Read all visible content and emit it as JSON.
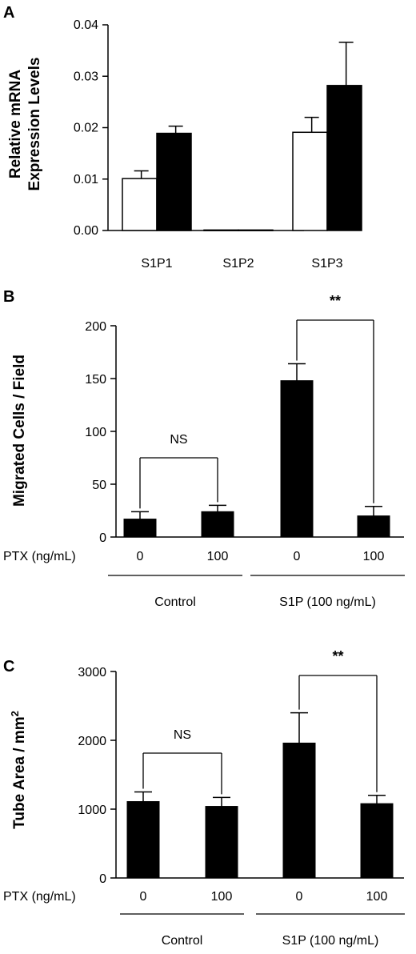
{
  "chart_data": [
    {
      "panel": "A",
      "type": "bar",
      "ylabel": [
        "Relative mRNA",
        "Expression Levels"
      ],
      "ylim": [
        0,
        0.04
      ],
      "yticks": [
        "0.00",
        "0.01",
        "0.02",
        "0.03",
        "0.04"
      ],
      "categories": [
        "S1P1",
        "S1P2",
        "S1P3"
      ],
      "series": [
        {
          "fill": "white",
          "values": [
            0.0101,
            0.0001,
            0.0191
          ],
          "errors": [
            0.0015,
            0.0,
            0.0029
          ]
        },
        {
          "fill": "black",
          "values": [
            0.0189,
            0.0001,
            0.0282
          ],
          "errors": [
            0.0014,
            0.0,
            0.0084
          ]
        }
      ]
    },
    {
      "panel": "B",
      "type": "bar",
      "ylabel": "Migrated Cells / Field",
      "ylim": [
        0,
        200
      ],
      "yticks": [
        "0",
        "50",
        "100",
        "150",
        "200"
      ],
      "row_label": "PTX (ng/mL)",
      "categories": [
        "0",
        "100",
        "0",
        "100"
      ],
      "groups": [
        "Control",
        "S1P (100 ng/mL)"
      ],
      "values": [
        17,
        24,
        148,
        20
      ],
      "errors": [
        7,
        6,
        16,
        9
      ],
      "comparisons": [
        {
          "from": 0,
          "to": 1,
          "label": "NS"
        },
        {
          "from": 2,
          "to": 3,
          "label": "**"
        }
      ]
    },
    {
      "panel": "C",
      "type": "bar",
      "ylabel": "Tube Area / mm",
      "ylabel_sup": "2",
      "ylim": [
        0,
        3000
      ],
      "yticks": [
        "0",
        "1000",
        "2000",
        "3000"
      ],
      "row_label": "PTX  (ng/mL)",
      "categories": [
        "0",
        "100",
        "0",
        "100"
      ],
      "groups": [
        "Control",
        "S1P (100 ng/mL)"
      ],
      "values": [
        1110,
        1040,
        1960,
        1080
      ],
      "errors": [
        140,
        130,
        440,
        120
      ],
      "comparisons": [
        {
          "from": 0,
          "to": 1,
          "label": "NS"
        },
        {
          "from": 2,
          "to": 3,
          "label": "**"
        }
      ]
    }
  ]
}
